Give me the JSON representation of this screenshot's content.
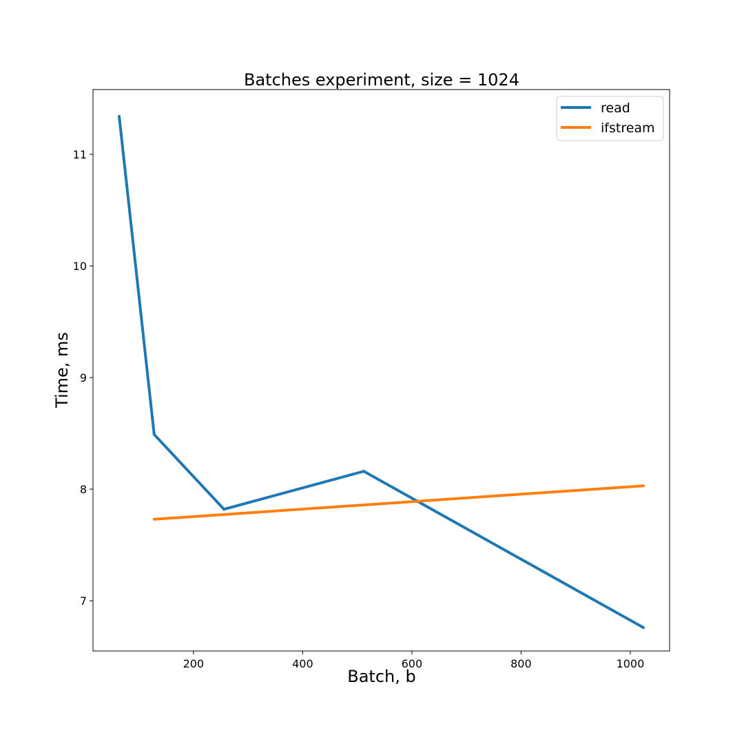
{
  "chart_data": {
    "type": "line",
    "title": "Batches experiment, size = 1024",
    "xlabel": "Batch, b",
    "ylabel": "Time, ms",
    "xlim": [
      16,
      1072
    ],
    "ylim": [
      6.55,
      11.58
    ],
    "xticks": [
      200,
      400,
      600,
      800,
      1000
    ],
    "yticks": [
      7,
      8,
      9,
      10,
      11
    ],
    "grid": false,
    "legend": "top-right",
    "series": [
      {
        "name": "read",
        "color": "#1f77b4",
        "x": [
          64,
          128,
          256,
          512,
          1024
        ],
        "y": [
          11.34,
          8.49,
          7.82,
          8.16,
          6.76
        ]
      },
      {
        "name": "ifstream",
        "color": "#ff7f0e",
        "x": [
          128,
          1024
        ],
        "y": [
          7.73,
          8.03
        ]
      }
    ]
  }
}
